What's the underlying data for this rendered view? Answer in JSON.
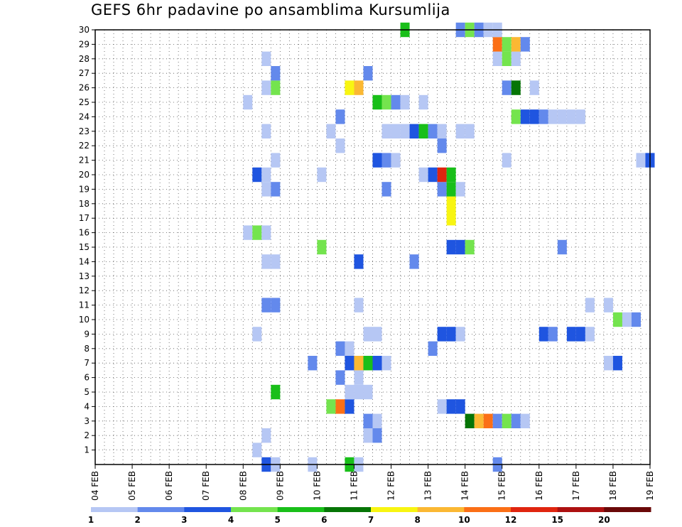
{
  "chart_data": {
    "type": "heatmap",
    "title": "GEFS 6hr padavine po ansamblima Kursumlija",
    "x_tick_labels": [
      "04 FEB",
      "05 FEB",
      "06 FEB",
      "07 FEB",
      "08 FEB",
      "09 FEB",
      "10 FEB",
      "11 FEB",
      "12 FEB",
      "13 FEB",
      "14 FEB",
      "15 FEB",
      "16 FEB",
      "17 FEB",
      "18 FEB",
      "19 FEB"
    ],
    "xlim_steps": [
      0,
      60
    ],
    "steps_per_day": 4,
    "y_tick_labels": [
      "1",
      "2",
      "3",
      "4",
      "5",
      "6",
      "7",
      "8",
      "9",
      "10",
      "11",
      "12",
      "13",
      "14",
      "15",
      "16",
      "17",
      "18",
      "19",
      "20",
      "21",
      "22",
      "23",
      "24",
      "25",
      "26",
      "27",
      "28",
      "29",
      "30"
    ],
    "ylim_members": [
      0,
      30
    ],
    "grid": "dotted",
    "colorbar": {
      "placement": "bottom",
      "levels": [
        "1",
        "2",
        "3",
        "4",
        "5",
        "6",
        "7",
        "8",
        "10",
        "12",
        "15",
        "20"
      ],
      "colors": [
        "#b6c7f4",
        "#6389ec",
        "#1f55e0",
        "#74e44e",
        "#19bf19",
        "#067506",
        "#f8f511",
        "#fbb833",
        "#fb6f16",
        "#e0250f",
        "#ad1010",
        "#6a0808"
      ]
    },
    "cells": [
      {
        "m": 0,
        "s": 18.5,
        "c": 2
      },
      {
        "m": 0,
        "s": 19.5,
        "c": 0
      },
      {
        "m": 0,
        "s": 23.5,
        "c": 0
      },
      {
        "m": 0,
        "s": 27.5,
        "c": 4
      },
      {
        "m": 0,
        "s": 28.5,
        "c": 0
      },
      {
        "m": 0,
        "s": 43.5,
        "c": 1
      },
      {
        "m": 1,
        "s": 17.5,
        "c": 0
      },
      {
        "m": 2,
        "s": 18.5,
        "c": 0
      },
      {
        "m": 2,
        "s": 29.5,
        "c": 0
      },
      {
        "m": 2,
        "s": 30.5,
        "c": 1
      },
      {
        "m": 3,
        "s": 29.5,
        "c": 1
      },
      {
        "m": 3,
        "s": 30.5,
        "c": 0
      },
      {
        "m": 3,
        "s": 40.5,
        "c": 5
      },
      {
        "m": 3,
        "s": 41.5,
        "c": 7
      },
      {
        "m": 3,
        "s": 42.5,
        "c": 8
      },
      {
        "m": 3,
        "s": 43.5,
        "c": 1
      },
      {
        "m": 3,
        "s": 44.5,
        "c": 3
      },
      {
        "m": 3,
        "s": 45.5,
        "c": 1
      },
      {
        "m": 3,
        "s": 46.5,
        "c": 0
      },
      {
        "m": 4,
        "s": 25.5,
        "c": 3
      },
      {
        "m": 4,
        "s": 26.5,
        "c": 8
      },
      {
        "m": 4,
        "s": 27.5,
        "c": 2
      },
      {
        "m": 4,
        "s": 37.5,
        "c": 0
      },
      {
        "m": 4,
        "s": 38.5,
        "c": 2
      },
      {
        "m": 4,
        "s": 39.5,
        "c": 2
      },
      {
        "m": 5,
        "s": 19.5,
        "c": 4
      },
      {
        "m": 5,
        "s": 27.5,
        "c": 0
      },
      {
        "m": 5,
        "s": 28.5,
        "c": 0
      },
      {
        "m": 5,
        "s": 29.5,
        "c": 0
      },
      {
        "m": 6,
        "s": 26.5,
        "c": 1
      },
      {
        "m": 6,
        "s": 28.5,
        "c": 0
      },
      {
        "m": 7,
        "s": 23.5,
        "c": 1
      },
      {
        "m": 7,
        "s": 27.5,
        "c": 2
      },
      {
        "m": 7,
        "s": 28.5,
        "c": 7
      },
      {
        "m": 7,
        "s": 29.5,
        "c": 4
      },
      {
        "m": 7,
        "s": 30.5,
        "c": 2
      },
      {
        "m": 7,
        "s": 31.5,
        "c": 0
      },
      {
        "m": 7,
        "s": 55.5,
        "c": 0
      },
      {
        "m": 7,
        "s": 56.5,
        "c": 2
      },
      {
        "m": 8,
        "s": 26.5,
        "c": 1
      },
      {
        "m": 8,
        "s": 27.5,
        "c": 0
      },
      {
        "m": 8,
        "s": 36.5,
        "c": 1
      },
      {
        "m": 9,
        "s": 17.5,
        "c": 0
      },
      {
        "m": 9,
        "s": 29.5,
        "c": 0
      },
      {
        "m": 9,
        "s": 30.5,
        "c": 0
      },
      {
        "m": 9,
        "s": 37.5,
        "c": 2
      },
      {
        "m": 9,
        "s": 38.5,
        "c": 2
      },
      {
        "m": 9,
        "s": 39.5,
        "c": 0
      },
      {
        "m": 9,
        "s": 48.5,
        "c": 2
      },
      {
        "m": 9,
        "s": 49.5,
        "c": 1
      },
      {
        "m": 9,
        "s": 51.5,
        "c": 2
      },
      {
        "m": 9,
        "s": 52.5,
        "c": 2
      },
      {
        "m": 9,
        "s": 53.5,
        "c": 0
      },
      {
        "m": 10,
        "s": 56.5,
        "c": 3
      },
      {
        "m": 10,
        "s": 57.5,
        "c": 0
      },
      {
        "m": 10,
        "s": 58.5,
        "c": 1
      },
      {
        "m": 11,
        "s": 18.5,
        "c": 1
      },
      {
        "m": 11,
        "s": 19.5,
        "c": 1
      },
      {
        "m": 11,
        "s": 28.5,
        "c": 0
      },
      {
        "m": 11,
        "s": 53.5,
        "c": 0
      },
      {
        "m": 11,
        "s": 55.5,
        "c": 0
      },
      {
        "m": 14,
        "s": 18.5,
        "c": 0
      },
      {
        "m": 14,
        "s": 19.5,
        "c": 0
      },
      {
        "m": 14,
        "s": 28.5,
        "c": 2
      },
      {
        "m": 14,
        "s": 34.5,
        "c": 1
      },
      {
        "m": 15,
        "s": 24.5,
        "c": 3
      },
      {
        "m": 15,
        "s": 38.5,
        "c": 2
      },
      {
        "m": 15,
        "s": 39.5,
        "c": 2
      },
      {
        "m": 15,
        "s": 40.5,
        "c": 3
      },
      {
        "m": 15,
        "s": 50.5,
        "c": 1
      },
      {
        "m": 16,
        "s": 16.5,
        "c": 0
      },
      {
        "m": 16,
        "s": 17.5,
        "c": 3
      },
      {
        "m": 16,
        "s": 18.5,
        "c": 0
      },
      {
        "m": 17,
        "s": 38.5,
        "c": 6
      },
      {
        "m": 18,
        "s": 38.5,
        "c": 6
      },
      {
        "m": 19,
        "s": 18.5,
        "c": 0
      },
      {
        "m": 19,
        "s": 19.5,
        "c": 1
      },
      {
        "m": 19,
        "s": 31.5,
        "c": 1
      },
      {
        "m": 19,
        "s": 37.5,
        "c": 1
      },
      {
        "m": 19,
        "s": 38.5,
        "c": 4
      },
      {
        "m": 19,
        "s": 39.5,
        "c": 0
      },
      {
        "m": 20,
        "s": 17.5,
        "c": 2
      },
      {
        "m": 20,
        "s": 18.5,
        "c": 0
      },
      {
        "m": 20,
        "s": 24.5,
        "c": 0
      },
      {
        "m": 20,
        "s": 35.5,
        "c": 0
      },
      {
        "m": 20,
        "s": 36.5,
        "c": 2
      },
      {
        "m": 20,
        "s": 37.5,
        "c": 9
      },
      {
        "m": 20,
        "s": 38.5,
        "c": 4
      },
      {
        "m": 21,
        "s": 19.5,
        "c": 0
      },
      {
        "m": 21,
        "s": 30.5,
        "c": 2
      },
      {
        "m": 21,
        "s": 31.5,
        "c": 1
      },
      {
        "m": 21,
        "s": 32.5,
        "c": 0
      },
      {
        "m": 21,
        "s": 44.5,
        "c": 0
      },
      {
        "m": 21,
        "s": 59.0,
        "c": 0
      },
      {
        "m": 21,
        "s": 60.0,
        "c": 2
      },
      {
        "m": 22,
        "s": 26.5,
        "c": 0
      },
      {
        "m": 22,
        "s": 37.5,
        "c": 1
      },
      {
        "m": 23,
        "s": 18.5,
        "c": 0
      },
      {
        "m": 23,
        "s": 25.5,
        "c": 0
      },
      {
        "m": 23,
        "s": 31.5,
        "c": 0
      },
      {
        "m": 23,
        "s": 32.5,
        "c": 0
      },
      {
        "m": 23,
        "s": 33.5,
        "c": 0
      },
      {
        "m": 23,
        "s": 34.5,
        "c": 2
      },
      {
        "m": 23,
        "s": 35.5,
        "c": 4
      },
      {
        "m": 23,
        "s": 36.5,
        "c": 1
      },
      {
        "m": 23,
        "s": 37.5,
        "c": 0
      },
      {
        "m": 23,
        "s": 39.5,
        "c": 0
      },
      {
        "m": 23,
        "s": 40.5,
        "c": 0
      },
      {
        "m": 24,
        "s": 26.5,
        "c": 1
      },
      {
        "m": 24,
        "s": 45.5,
        "c": 3
      },
      {
        "m": 24,
        "s": 46.5,
        "c": 2
      },
      {
        "m": 24,
        "s": 47.5,
        "c": 2
      },
      {
        "m": 24,
        "s": 48.5,
        "c": 1
      },
      {
        "m": 24,
        "s": 49.5,
        "c": 0
      },
      {
        "m": 24,
        "s": 50.5,
        "c": 0
      },
      {
        "m": 24,
        "s": 51.5,
        "c": 0
      },
      {
        "m": 24,
        "s": 52.5,
        "c": 0
      },
      {
        "m": 25,
        "s": 16.5,
        "c": 0
      },
      {
        "m": 25,
        "s": 30.5,
        "c": 4
      },
      {
        "m": 25,
        "s": 31.5,
        "c": 3
      },
      {
        "m": 25,
        "s": 32.5,
        "c": 1
      },
      {
        "m": 25,
        "s": 33.5,
        "c": 0
      },
      {
        "m": 25,
        "s": 35.5,
        "c": 0
      },
      {
        "m": 26,
        "s": 18.5,
        "c": 0
      },
      {
        "m": 26,
        "s": 19.5,
        "c": 3
      },
      {
        "m": 26,
        "s": 27.5,
        "c": 6
      },
      {
        "m": 26,
        "s": 28.5,
        "c": 7
      },
      {
        "m": 26,
        "s": 44.5,
        "c": 1
      },
      {
        "m": 26,
        "s": 45.5,
        "c": 5
      },
      {
        "m": 26,
        "s": 47.5,
        "c": 0
      },
      {
        "m": 27,
        "s": 19.5,
        "c": 1
      },
      {
        "m": 27,
        "s": 29.5,
        "c": 1
      },
      {
        "m": 28,
        "s": 18.5,
        "c": 0
      },
      {
        "m": 28,
        "s": 43.5,
        "c": 0
      },
      {
        "m": 28,
        "s": 44.5,
        "c": 3
      },
      {
        "m": 28,
        "s": 45.5,
        "c": 0
      },
      {
        "m": 29,
        "s": 43.5,
        "c": 8
      },
      {
        "m": 29,
        "s": 44.5,
        "c": 3
      },
      {
        "m": 29,
        "s": 45.5,
        "c": 7
      },
      {
        "m": 29,
        "s": 46.5,
        "c": 1
      },
      {
        "m": 30,
        "s": 33.5,
        "c": 4
      },
      {
        "m": 30,
        "s": 39.5,
        "c": 1
      },
      {
        "m": 30,
        "s": 40.5,
        "c": 3
      },
      {
        "m": 30,
        "s": 41.5,
        "c": 1
      },
      {
        "m": 30,
        "s": 42.5,
        "c": 0
      },
      {
        "m": 30,
        "s": 43.5,
        "c": 0
      }
    ]
  }
}
